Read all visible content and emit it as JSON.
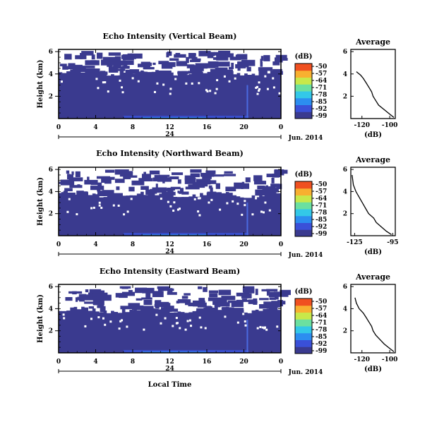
{
  "chart_data": [
    {
      "type": "heatmap",
      "title": "Echo Intensity (Vertical Beam)",
      "ylabel": "Height (km)",
      "yticks": [
        "2",
        "4",
        "6"
      ],
      "xticks": [
        "0",
        "4",
        "8",
        "12",
        "16",
        "20",
        "0"
      ],
      "date_tick": "24",
      "date_label": "Jun. 2014",
      "xlim": [
        0,
        24
      ],
      "ylim": [
        0,
        6.2
      ],
      "blank_top_km": 4.1,
      "colorbar": {
        "label": "(dB)",
        "ticks": [
          "-50",
          "-57",
          "-64",
          "-71",
          "-78",
          "-85",
          "-92",
          "-99"
        ]
      },
      "profile": {
        "title": "Average",
        "xlabel": "(dB)",
        "xticks": [
          "-120",
          "-100"
        ],
        "yticks": [
          "2",
          "4",
          "6"
        ],
        "xlim": [
          -128,
          -96
        ],
        "points": [
          [
            -97,
            0.1
          ],
          [
            -100,
            0.4
          ],
          [
            -104,
            0.8
          ],
          [
            -108,
            1.2
          ],
          [
            -110,
            1.6
          ],
          [
            -112,
            2.0
          ],
          [
            -113,
            2.4
          ],
          [
            -115,
            2.8
          ],
          [
            -117,
            3.2
          ],
          [
            -119,
            3.6
          ],
          [
            -121,
            3.9
          ],
          [
            -124,
            4.2
          ]
        ]
      }
    },
    {
      "type": "heatmap",
      "title": "Echo Intensity (Northward Beam)",
      "ylabel": "Height (km)",
      "yticks": [
        "2",
        "4",
        "6"
      ],
      "xticks": [
        "0",
        "4",
        "8",
        "12",
        "16",
        "20",
        "0"
      ],
      "date_tick": "24",
      "date_label": "Jun. 2014",
      "xlim": [
        0,
        24
      ],
      "ylim": [
        0,
        6.2
      ],
      "blank_top_km": 3.7,
      "colorbar": {
        "label": "(dB)",
        "ticks": [
          "-50",
          "-57",
          "-64",
          "-71",
          "-78",
          "-85",
          "-92",
          "-99"
        ]
      },
      "profile": {
        "title": "Average",
        "xlabel": "(dB)",
        "xticks": [
          "-125",
          "-95"
        ],
        "yticks": [
          "2",
          "4",
          "6"
        ],
        "xlim": [
          -128,
          -93
        ],
        "points": [
          [
            -96,
            0.1
          ],
          [
            -100,
            0.4
          ],
          [
            -104,
            0.8
          ],
          [
            -108,
            1.2
          ],
          [
            -110,
            1.6
          ],
          [
            -114,
            2.0
          ],
          [
            -116,
            2.4
          ],
          [
            -118,
            2.8
          ],
          [
            -120,
            3.2
          ],
          [
            -122,
            3.6
          ],
          [
            -124,
            4.0
          ],
          [
            -126,
            4.6
          ],
          [
            -127,
            5.5
          ]
        ]
      }
    },
    {
      "type": "heatmap",
      "title": "Echo Intensity (Eastward Beam)",
      "ylabel": "Height (km)",
      "yticks": [
        "2",
        "4",
        "6"
      ],
      "xticks": [
        "0",
        "4",
        "8",
        "12",
        "16",
        "20",
        "0"
      ],
      "date_tick": "24",
      "date_label": "Jun. 2014",
      "xlabel": "Local Time",
      "xlim": [
        0,
        24
      ],
      "ylim": [
        0,
        6.2
      ],
      "blank_top_km": 3.9,
      "colorbar": {
        "label": "(dB)",
        "ticks": [
          "-50",
          "-57",
          "-64",
          "-71",
          "-78",
          "-85",
          "-92",
          "-99"
        ]
      },
      "profile": {
        "title": "Average",
        "xlabel": "(dB)",
        "xticks": [
          "-120",
          "-100"
        ],
        "yticks": [
          "2",
          "4",
          "6"
        ],
        "xlim": [
          -128,
          -96
        ],
        "points": [
          [
            -97,
            0.1
          ],
          [
            -100,
            0.4
          ],
          [
            -104,
            0.8
          ],
          [
            -107,
            1.2
          ],
          [
            -110,
            1.6
          ],
          [
            -112,
            2.0
          ],
          [
            -113,
            2.4
          ],
          [
            -115,
            2.8
          ],
          [
            -117,
            3.2
          ],
          [
            -119,
            3.6
          ],
          [
            -122,
            4.0
          ],
          [
            -124,
            4.5
          ],
          [
            -125,
            5.0
          ]
        ]
      }
    }
  ]
}
